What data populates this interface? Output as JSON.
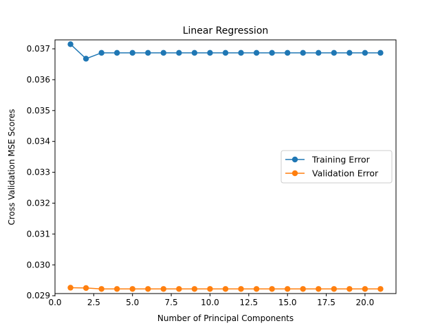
{
  "chart_data": {
    "type": "line",
    "title": "Linear Regression",
    "xlabel": "Number of Principal Components",
    "ylabel": "Cross Validation MSE Scores",
    "xlim": [
      0,
      22
    ],
    "ylim": [
      0.02907,
      0.03729
    ],
    "xticks": [
      0.0,
      2.5,
      5.0,
      7.5,
      10.0,
      12.5,
      15.0,
      17.5,
      20.0
    ],
    "xtick_labels": [
      "0.0",
      "2.5",
      "5.0",
      "7.5",
      "10.0",
      "12.5",
      "15.0",
      "17.5",
      "20.0"
    ],
    "yticks": [
      0.029,
      0.03,
      0.031,
      0.032,
      0.033,
      0.034,
      0.035,
      0.036,
      0.037
    ],
    "ytick_labels": [
      "0.029",
      "0.030",
      "0.031",
      "0.032",
      "0.033",
      "0.034",
      "0.035",
      "0.036",
      "0.037"
    ],
    "grid": false,
    "legend_position": "center-right",
    "x": [
      1,
      2,
      3,
      4,
      5,
      6,
      7,
      8,
      9,
      10,
      11,
      12,
      13,
      14,
      15,
      16,
      17,
      18,
      19,
      20,
      21
    ],
    "series": [
      {
        "name": "Training Error",
        "color": "#1f77b4",
        "values": [
          0.03715,
          0.03668,
          0.03687,
          0.03687,
          0.03687,
          0.03687,
          0.03687,
          0.03687,
          0.03687,
          0.03687,
          0.03687,
          0.03687,
          0.03687,
          0.03687,
          0.03687,
          0.03687,
          0.03687,
          0.03687,
          0.03687,
          0.03687,
          0.03687
        ]
      },
      {
        "name": "Validation Error",
        "color": "#ff7f0e",
        "values": [
          0.02926,
          0.02925,
          0.02922,
          0.02922,
          0.02922,
          0.02922,
          0.02922,
          0.02922,
          0.02922,
          0.02922,
          0.02922,
          0.02922,
          0.02922,
          0.02922,
          0.02922,
          0.02922,
          0.02922,
          0.02922,
          0.02922,
          0.02922,
          0.02922
        ]
      }
    ]
  }
}
